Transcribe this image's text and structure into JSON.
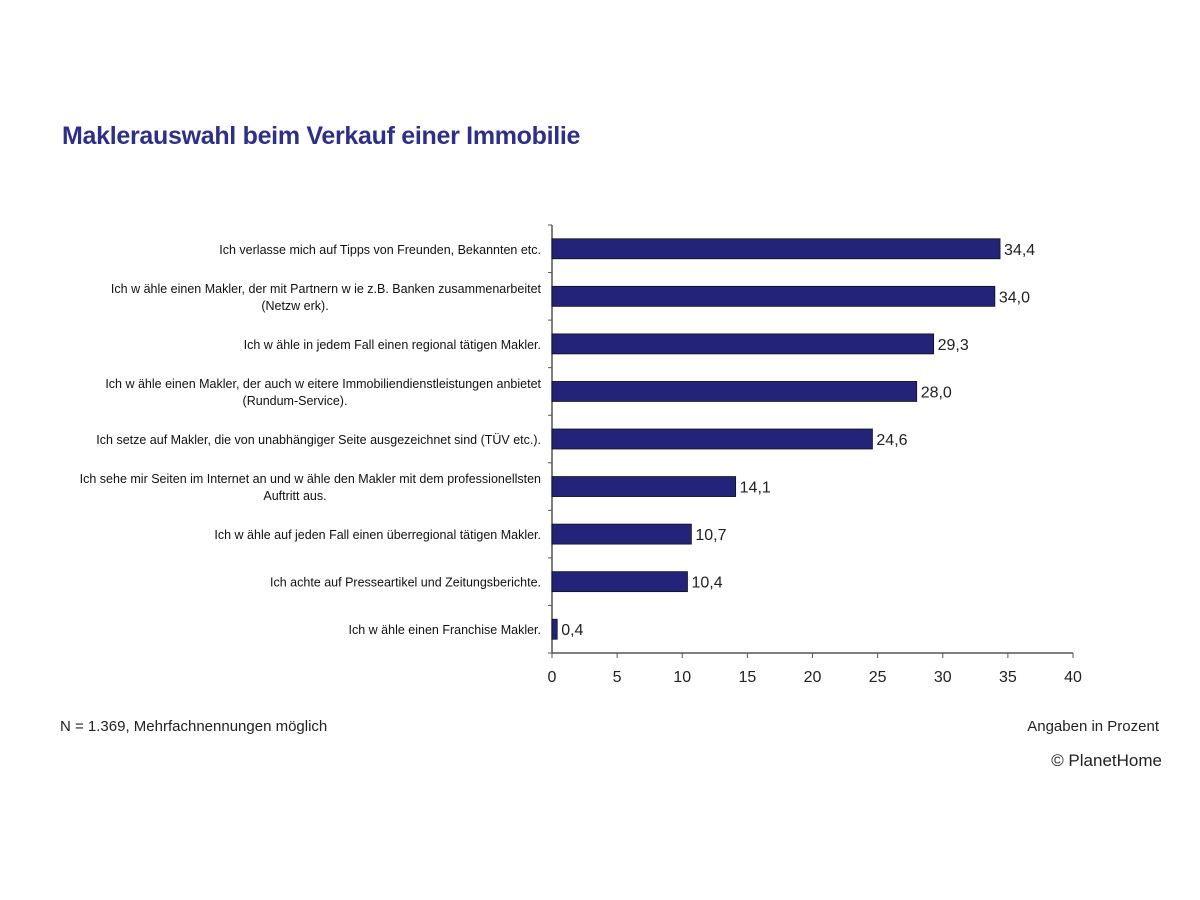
{
  "chart_data": {
    "type": "bar",
    "orientation": "horizontal",
    "title": "Maklerauswahl beim Verkauf einer Immobilie",
    "categories": [
      [
        "Ich verlasse mich auf Tipps von Freunden, Bekannten etc."
      ],
      [
        "Ich w ähle einen Makler, der mit Partnern w ie z.B. Banken zusammenarbeitet",
        "(Netzw erk)."
      ],
      [
        "Ich w ähle in jedem Fall einen regional tätigen Makler."
      ],
      [
        "Ich w ähle einen Makler, der auch w eitere Immobiliendienstleistungen anbietet",
        "(Rundum-Service)."
      ],
      [
        "Ich setze auf Makler, die von unabhängiger Seite ausgezeichnet sind (TÜV etc.)."
      ],
      [
        "Ich sehe mir Seiten im Internet an und w ähle den Makler mit dem professionellsten",
        "Auftritt aus."
      ],
      [
        "Ich w ähle auf jeden Fall einen überregional tätigen Makler."
      ],
      [
        "Ich achte auf Presseartikel und Zeitungsberichte."
      ],
      [
        "Ich w ähle einen Franchise Makler."
      ]
    ],
    "values": [
      34.4,
      34.0,
      29.3,
      28.0,
      24.6,
      14.1,
      10.7,
      10.4,
      0.4
    ],
    "value_labels": [
      "34,4",
      "34,0",
      "29,3",
      "28,0",
      "24,6",
      "14,1",
      "10,7",
      "10,4",
      "0,4"
    ],
    "xlim": [
      0,
      40
    ],
    "xticks": [
      "0",
      "5",
      "10",
      "15",
      "20",
      "25",
      "30",
      "35",
      "40"
    ],
    "grid": false,
    "bar_color": "#23237a"
  },
  "footnote": "N = 1.369, Mehrfachnennungen möglich",
  "unit_note": "Angaben in Prozent",
  "copyright": "© PlanetHome"
}
